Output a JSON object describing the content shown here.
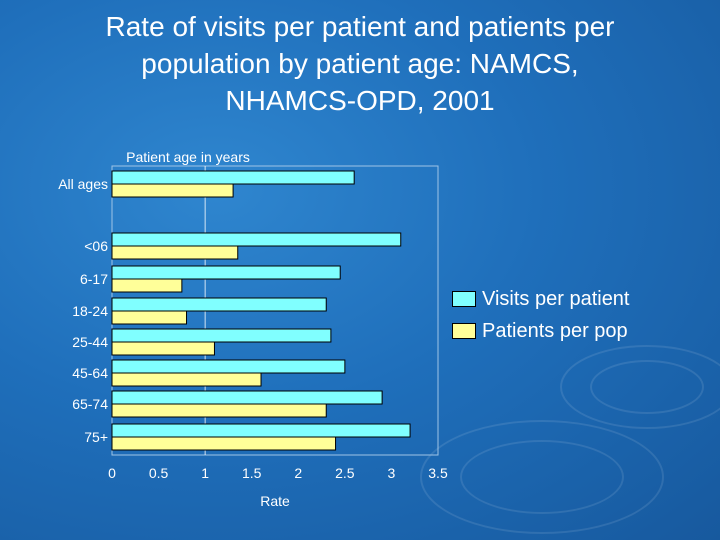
{
  "page": {
    "title_lines": [
      "Rate of visits per patient and patients per",
      "population by patient age: NAMCS,",
      "NHAMCS-OPD, 2001"
    ]
  },
  "chart_data": {
    "type": "bar",
    "orientation": "horizontal",
    "title": "Rate of visits per patient and patients per population by patient age: NAMCS, NHAMCS-OPD, 2001",
    "category_axis_title": "Patient age in years",
    "xlabel": "Rate",
    "xlim": [
      0,
      3.5
    ],
    "xticks": [
      "0",
      "0.5",
      "1",
      "1.5",
      "2",
      "2.5",
      "3",
      "3.5"
    ],
    "categories": [
      "All ages",
      "<06",
      "6-17",
      "18-24",
      "25-44",
      "45-64",
      "65-74",
      "75+"
    ],
    "series": [
      {
        "name": "Visits per patient",
        "color": "#80ffff",
        "values": [
          2.6,
          3.1,
          2.45,
          2.3,
          2.35,
          2.5,
          2.9,
          3.2
        ]
      },
      {
        "name": "Patients per pop",
        "color": "#ffff99",
        "values": [
          1.3,
          1.35,
          0.75,
          0.8,
          1.1,
          1.6,
          2.3,
          2.4
        ]
      }
    ],
    "legend_position": "right",
    "grid": false
  }
}
